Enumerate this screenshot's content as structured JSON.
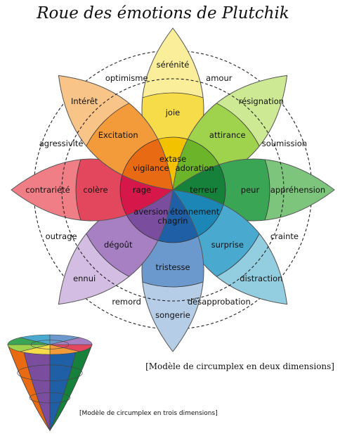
{
  "title": "Roue des émotions de Plutchik",
  "petals": [
    {
      "inner": "extase",
      "middle": "joie",
      "outer": "sérénité",
      "colors": [
        "#f2c200",
        "#f7dc4a",
        "#fbee9a"
      ]
    },
    {
      "inner": "adoration",
      "middle": "attirance",
      "outer": "résignation",
      "colors": [
        "#6cb52a",
        "#9fd24d",
        "#cde993"
      ]
    },
    {
      "inner": "terreur",
      "middle": "peur",
      "outer": "appréhension",
      "colors": [
        "#15813b",
        "#3aa554",
        "#7dc57c"
      ]
    },
    {
      "inner": "étonnement",
      "middle": "surprise",
      "outer": "distraction",
      "colors": [
        "#1c86b6",
        "#4aa9cf",
        "#92cde0"
      ]
    },
    {
      "inner": "chagrin",
      "middle": "tristesse",
      "outer": "songerie",
      "colors": [
        "#1f5fa6",
        "#6b98cd",
        "#b6cde7"
      ]
    },
    {
      "inner": "aversion",
      "middle": "dégoût",
      "outer": "ennui",
      "colors": [
        "#7a4d9f",
        "#a77fc3",
        "#d3bde3"
      ]
    },
    {
      "inner": "rage",
      "middle": "colère",
      "outer": "contrariété",
      "colors": [
        "#d6174a",
        "#e3475d",
        "#ef7e86"
      ]
    },
    {
      "inner": "vigilance",
      "middle": "Excitation",
      "outer": "Intérêt",
      "colors": [
        "#e86a12",
        "#f39a3a",
        "#f9c488"
      ]
    }
  ],
  "dyads": [
    "amour",
    "soumission",
    "crainte",
    "désapprobation",
    "remord",
    "outrage",
    "agressivité",
    "optimisme"
  ],
  "caption_2d": "[Modèle de circumplex en deux dimensions]",
  "caption_3d": "[Modèle de circumplex en trois dimensions]"
}
